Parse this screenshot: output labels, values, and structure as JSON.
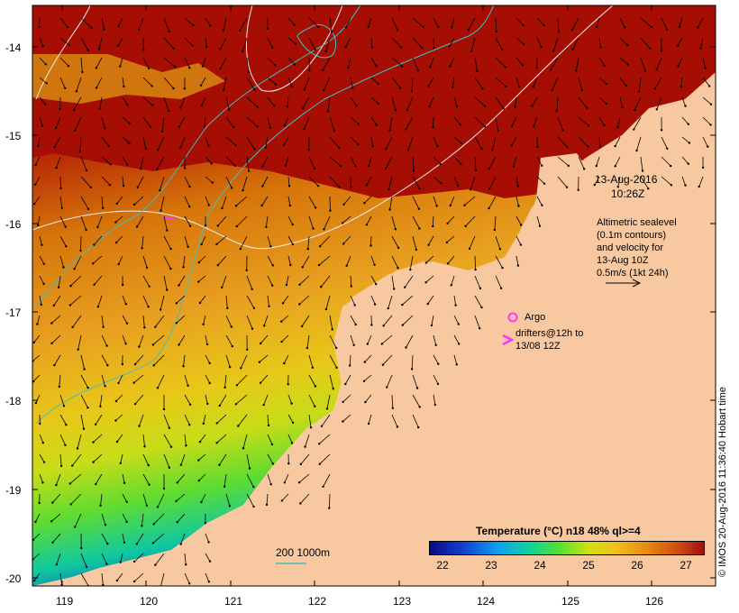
{
  "map": {
    "land_color": "#f8c9a0",
    "frame_color": "#000000"
  },
  "axes": {
    "lon_ticks": [
      "119",
      "120",
      "121",
      "122",
      "123",
      "124",
      "125",
      "126"
    ],
    "lat_ticks": [
      "-14",
      "-15",
      "-16",
      "-17",
      "-18",
      "-19",
      "-20"
    ]
  },
  "annotations": {
    "date_line1": "13-Aug-2016",
    "date_line2": "10:26Z",
    "alt_line1": "Altimetric sealevel",
    "alt_line2": "(0.1m contours)",
    "alt_line3": "and velocity for",
    "alt_line4": "13-Aug 10Z",
    "alt_line5": "0.5m/s (1kt 24h)"
  },
  "legend": {
    "argo_label": "Argo",
    "argo_color": "#ff33ff",
    "drifters_line1": "drifters@12h to",
    "drifters_line2": "13/08 12Z",
    "drifters_color": "#ff33ff"
  },
  "colorbar": {
    "title": "Temperature (°C) n18 48% ql>=4",
    "ticks": [
      "22",
      "23",
      "24",
      "25",
      "26",
      "27"
    ],
    "colors": [
      "#0a0a80",
      "#1040d0",
      "#10a0f0",
      "#10d0a0",
      "#50e030",
      "#d0e010",
      "#f0c020",
      "#e89010",
      "#d05010",
      "#a01010"
    ]
  },
  "scale_bar": {
    "label": "200  1000m",
    "color": "#40c0c0"
  },
  "credit": "© IMOS 20-Aug-2016 11:36:40 Hobart time"
}
